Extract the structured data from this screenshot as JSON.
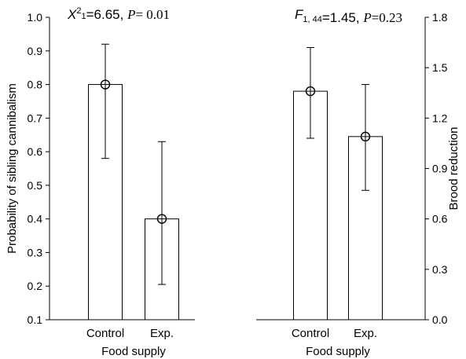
{
  "chart_data": [
    {
      "type": "bar",
      "title": "",
      "stat_label": {
        "sym": "X",
        "sup": "2",
        "sub": "1",
        "rest": "=6.65, ",
        "p_sym": "P",
        "p_rest": "= 0.01"
      },
      "categories": [
        "Control",
        "Exp."
      ],
      "values": [
        0.8,
        0.4
      ],
      "error_low": [
        0.58,
        0.205
      ],
      "error_high": [
        0.92,
        0.63
      ],
      "xlabel": "Food supply",
      "ylabel": "Probability of sibling cannibalism",
      "ylim": [
        0.1,
        1.0
      ],
      "yticks": [
        0.1,
        0.2,
        0.3,
        0.4,
        0.5,
        0.6,
        0.7,
        0.8,
        0.9,
        1.0
      ],
      "ytick_labels": [
        "0.1",
        "0.2",
        "0.3",
        "0.4",
        "0.5",
        "0.6",
        "0.7",
        "0.8",
        "0.9",
        "1.0"
      ],
      "yaxis_side": "left",
      "grid": false,
      "marker": "open-circle"
    },
    {
      "type": "bar",
      "title": "",
      "stat_label": {
        "sym": "F",
        "sub": "1, 44",
        "rest": "=1.45, ",
        "p_sym": "P",
        "p_rest": "=0.23"
      },
      "categories": [
        "Control",
        "Exp."
      ],
      "values": [
        1.36,
        1.09
      ],
      "error_low": [
        1.08,
        0.77
      ],
      "error_high": [
        1.62,
        1.4
      ],
      "xlabel": "Food supply",
      "ylabel": "Brood reduction",
      "ylim": [
        0.0,
        1.8
      ],
      "yticks": [
        0.0,
        0.3,
        0.6,
        0.9,
        1.2,
        1.5,
        1.8
      ],
      "ytick_labels": [
        "0.0",
        "0.3",
        "0.6",
        "0.9",
        "1.2",
        "1.5",
        "1.8"
      ],
      "yaxis_side": "right",
      "grid": false,
      "marker": "open-circle"
    }
  ]
}
